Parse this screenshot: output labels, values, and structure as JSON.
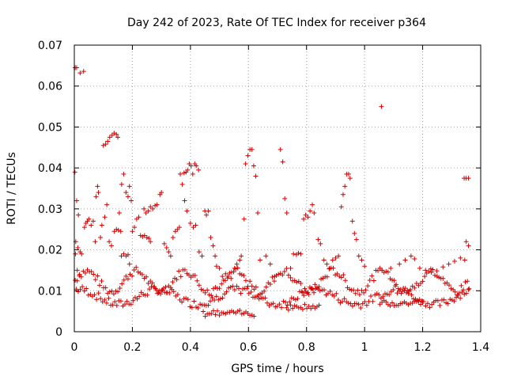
{
  "chart_data": {
    "type": "scatter",
    "title": "Day 242 of 2023, Rate Of TEC Index for receiver p364",
    "xlabel": "GPS time / hours",
    "ylabel": "ROTI / TECUs",
    "xlim": [
      0,
      1.4
    ],
    "ylim": [
      0,
      0.07
    ],
    "xticks": [
      "0",
      "0.2",
      "0.4",
      "0.6",
      "0.8",
      "1",
      "1.2",
      "1.4"
    ],
    "yticks": [
      "0",
      "0.01",
      "0.02",
      "0.03",
      "0.04",
      "0.05",
      "0.06",
      "0.07"
    ],
    "grid": true,
    "marker": "plus",
    "color": "#d40000",
    "series": [
      {
        "points": [
          [
            0.003,
            0.0645
          ],
          [
            0.008,
            0.0645
          ],
          [
            0.02,
            0.0632
          ],
          [
            0.032,
            0.0636
          ],
          [
            0.002,
            0.039
          ],
          [
            0.008,
            0.032
          ],
          [
            0.014,
            0.0285
          ],
          [
            0.005,
            0.022
          ],
          [
            0.012,
            0.0205
          ],
          [
            0.02,
            0.0195
          ],
          [
            0.004,
            0.019
          ],
          [
            0.01,
            0.015
          ],
          [
            0.018,
            0.014
          ],
          [
            0.025,
            0.019
          ],
          [
            0.035,
            0.0255
          ],
          [
            0.04,
            0.0265
          ],
          [
            0.045,
            0.027
          ],
          [
            0.05,
            0.0275
          ],
          [
            0.058,
            0.026
          ],
          [
            0.065,
            0.027
          ],
          [
            0.072,
            0.022
          ],
          [
            0.075,
            0.033
          ],
          [
            0.08,
            0.0355
          ],
          [
            0.083,
            0.034
          ],
          [
            0.09,
            0.023
          ],
          [
            0.095,
            0.026
          ],
          [
            0.1,
            0.0455
          ],
          [
            0.108,
            0.0458
          ],
          [
            0.115,
            0.0465
          ],
          [
            0.122,
            0.0475
          ],
          [
            0.13,
            0.048
          ],
          [
            0.137,
            0.0485
          ],
          [
            0.145,
            0.0482
          ],
          [
            0.15,
            0.0475
          ],
          [
            0.138,
            0.0245
          ],
          [
            0.145,
            0.025
          ],
          [
            0.152,
            0.0248
          ],
          [
            0.16,
            0.0245
          ],
          [
            0.163,
            0.036
          ],
          [
            0.17,
            0.0385
          ],
          [
            0.178,
            0.034
          ],
          [
            0.185,
            0.033
          ],
          [
            0.19,
            0.0355
          ],
          [
            0.196,
            0.032
          ],
          [
            0.105,
            0.028
          ],
          [
            0.112,
            0.031
          ],
          [
            0.12,
            0.022
          ],
          [
            0.128,
            0.021
          ],
          [
            0.155,
            0.029
          ],
          [
            0.162,
            0.0185
          ],
          [
            0.17,
            0.019
          ],
          [
            0.178,
            0.0185
          ],
          [
            0.185,
            0.0188
          ],
          [
            0.19,
            0.0165
          ],
          [
            0.2,
            0.0245
          ],
          [
            0.207,
            0.0255
          ],
          [
            0.215,
            0.0275
          ],
          [
            0.222,
            0.028
          ],
          [
            0.228,
            0.0235
          ],
          [
            0.235,
            0.0232
          ],
          [
            0.242,
            0.0235
          ],
          [
            0.25,
            0.023
          ],
          [
            0.257,
            0.0228
          ],
          [
            0.262,
            0.022
          ],
          [
            0.24,
            0.03
          ],
          [
            0.247,
            0.029
          ],
          [
            0.255,
            0.0295
          ],
          [
            0.262,
            0.0305
          ],
          [
            0.27,
            0.03
          ],
          [
            0.278,
            0.0308
          ],
          [
            0.285,
            0.031
          ],
          [
            0.295,
            0.0335
          ],
          [
            0.3,
            0.034
          ],
          [
            0.31,
            0.0215
          ],
          [
            0.318,
            0.0205
          ],
          [
            0.325,
            0.0195
          ],
          [
            0.332,
            0.0185
          ],
          [
            0.34,
            0.023
          ],
          [
            0.348,
            0.0245
          ],
          [
            0.355,
            0.025
          ],
          [
            0.362,
            0.0255
          ],
          [
            0.365,
            0.0385
          ],
          [
            0.372,
            0.036
          ],
          [
            0.378,
            0.0388
          ],
          [
            0.385,
            0.039
          ],
          [
            0.39,
            0.0395
          ],
          [
            0.396,
            0.041
          ],
          [
            0.402,
            0.0405
          ],
          [
            0.408,
            0.0385
          ],
          [
            0.415,
            0.041
          ],
          [
            0.42,
            0.0405
          ],
          [
            0.428,
            0.0395
          ],
          [
            0.38,
            0.032
          ],
          [
            0.388,
            0.0295
          ],
          [
            0.4,
            0.0265
          ],
          [
            0.41,
            0.0255
          ],
          [
            0.418,
            0.026
          ],
          [
            0.43,
            0.0195
          ],
          [
            0.44,
            0.0185
          ],
          [
            0.45,
            0.0295
          ],
          [
            0.455,
            0.0285
          ],
          [
            0.462,
            0.0295
          ],
          [
            0.47,
            0.023
          ],
          [
            0.478,
            0.021
          ],
          [
            0.485,
            0.0185
          ],
          [
            0.49,
            0.016
          ],
          [
            0.5,
            0.0155
          ],
          [
            0.51,
            0.0135
          ],
          [
            0.52,
            0.0125
          ],
          [
            0.53,
            0.0135
          ],
          [
            0.54,
            0.013
          ],
          [
            0.552,
            0.0155
          ],
          [
            0.56,
            0.0165
          ],
          [
            0.57,
            0.0175
          ],
          [
            0.575,
            0.0185
          ],
          [
            0.585,
            0.0275
          ],
          [
            0.59,
            0.041
          ],
          [
            0.598,
            0.043
          ],
          [
            0.605,
            0.0445
          ],
          [
            0.612,
            0.0445
          ],
          [
            0.618,
            0.0405
          ],
          [
            0.625,
            0.038
          ],
          [
            0.632,
            0.029
          ],
          [
            0.64,
            0.0175
          ],
          [
            0.66,
            0.0185
          ],
          [
            0.675,
            0.0165
          ],
          [
            0.69,
            0.0135
          ],
          [
            0.71,
            0.0445
          ],
          [
            0.718,
            0.0415
          ],
          [
            0.725,
            0.0325
          ],
          [
            0.732,
            0.029
          ],
          [
            0.745,
            0.0155
          ],
          [
            0.755,
            0.019
          ],
          [
            0.765,
            0.0188
          ],
          [
            0.772,
            0.0192
          ],
          [
            0.78,
            0.019
          ],
          [
            0.79,
            0.0275
          ],
          [
            0.797,
            0.0285
          ],
          [
            0.805,
            0.028
          ],
          [
            0.812,
            0.0295
          ],
          [
            0.82,
            0.031
          ],
          [
            0.826,
            0.029
          ],
          [
            0.84,
            0.0225
          ],
          [
            0.848,
            0.0215
          ],
          [
            0.86,
            0.0175
          ],
          [
            0.87,
            0.0165
          ],
          [
            0.88,
            0.0155
          ],
          [
            0.89,
            0.0175
          ],
          [
            0.9,
            0.018
          ],
          [
            0.91,
            0.0185
          ],
          [
            0.92,
            0.0305
          ],
          [
            0.926,
            0.0335
          ],
          [
            0.932,
            0.0355
          ],
          [
            0.938,
            0.0385
          ],
          [
            0.945,
            0.0385
          ],
          [
            0.95,
            0.0375
          ],
          [
            0.958,
            0.027
          ],
          [
            0.965,
            0.024
          ],
          [
            0.972,
            0.0225
          ],
          [
            0.98,
            0.0185
          ],
          [
            0.99,
            0.0175
          ],
          [
            1.0,
            0.016
          ],
          [
            1.058,
            0.055
          ],
          [
            1.06,
            0.015
          ],
          [
            1.09,
            0.0155
          ],
          [
            1.12,
            0.0165
          ],
          [
            1.14,
            0.0175
          ],
          [
            1.16,
            0.0185
          ],
          [
            1.172,
            0.0178
          ],
          [
            1.19,
            0.0155
          ],
          [
            1.21,
            0.015
          ],
          [
            1.23,
            0.0145
          ],
          [
            1.25,
            0.0135
          ],
          [
            1.27,
            0.0158
          ],
          [
            1.29,
            0.0165
          ],
          [
            1.31,
            0.0172
          ],
          [
            1.33,
            0.018
          ],
          [
            1.343,
            0.0375
          ],
          [
            1.35,
            0.0375
          ],
          [
            1.358,
            0.0375
          ],
          [
            1.35,
            0.022
          ],
          [
            1.358,
            0.021
          ],
          [
            1.345,
            0.0175
          ],
          [
            1.36,
            0.0105
          ]
        ]
      }
    ],
    "band": {
      "x_start": 0.003,
      "x_end": 1.36,
      "step": 0.007,
      "upper_level": 0.0123,
      "lower_level": 0.0085,
      "lower_extra": [
        {
          "x0": 0.44,
          "x1": 0.62,
          "y": 0.0045
        },
        {
          "x0": 0.73,
          "x1": 0.85,
          "y": 0.006
        },
        {
          "x0": 1.05,
          "x1": 1.2,
          "y": 0.007
        }
      ]
    }
  }
}
